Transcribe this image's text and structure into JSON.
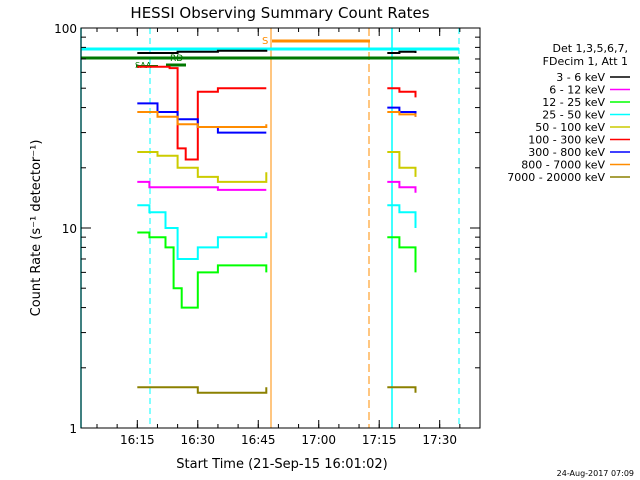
{
  "chart_data": {
    "type": "line",
    "title": "HESSI Observing Summary Count Rates",
    "xlabel": "Start Time (21-Sep-15 16:01:02)",
    "ylabel": "Count Rate (s⁻¹ detector⁻¹)",
    "y_scale": "log",
    "ylim": [
      1,
      100
    ],
    "xlim": [
      "16:01:02",
      "17:40:00"
    ],
    "x_ticks": [
      "16:15",
      "16:30",
      "16:45",
      "17:00",
      "17:15",
      "17:30"
    ],
    "y_ticks": [
      "1",
      "10",
      "100"
    ],
    "legend_header": [
      "Det 1,3,5,6,7,",
      "FDecim 1, Att 1"
    ],
    "legend_placement": "right",
    "flags": [
      "S",
      "RD",
      "SAA"
    ],
    "series": [
      {
        "name": "3 - 6 keV",
        "color": "#000000",
        "segments": [
          {
            "x": [
              "16:15",
              "16:25",
              "16:35",
              "16:47"
            ],
            "y": [
              75,
              76,
              77,
              76
            ]
          },
          {
            "x": [
              "17:17",
              "17:20",
              "17:24"
            ],
            "y": [
              75,
              76,
              75
            ]
          }
        ]
      },
      {
        "name": "6 - 12 keV",
        "color": "#ff00ff",
        "segments": [
          {
            "x": [
              "16:15",
              "16:18",
              "16:25",
              "16:35",
              "16:47"
            ],
            "y": [
              17,
              16,
              16,
              15.5,
              15.5
            ]
          },
          {
            "x": [
              "17:17",
              "17:20",
              "17:24"
            ],
            "y": [
              17,
              16,
              15
            ]
          }
        ]
      },
      {
        "name": "12 - 25 keV",
        "color": "#00ff00",
        "segments": [
          {
            "x": [
              "16:15",
              "16:18",
              "16:22",
              "16:24",
              "16:26",
              "16:30",
              "16:35",
              "16:47"
            ],
            "y": [
              9.5,
              9,
              8,
              5,
              4,
              6,
              6.5,
              6
            ]
          },
          {
            "x": [
              "17:17",
              "17:20",
              "17:24"
            ],
            "y": [
              9,
              8,
              6
            ]
          }
        ]
      },
      {
        "name": "25 - 50 keV",
        "color": "#00ffff",
        "segments": [
          {
            "x": [
              "16:15",
              "16:18",
              "16:22",
              "16:25",
              "16:30",
              "16:35",
              "16:47"
            ],
            "y": [
              13,
              12,
              10,
              7,
              8,
              9,
              9.5
            ]
          },
          {
            "x": [
              "17:17",
              "17:20",
              "17:24"
            ],
            "y": [
              13,
              12,
              10
            ]
          }
        ]
      },
      {
        "name": "50 - 100 keV",
        "color": "#cccc00",
        "segments": [
          {
            "x": [
              "16:15",
              "16:20",
              "16:25",
              "16:30",
              "16:35",
              "16:47"
            ],
            "y": [
              24,
              23,
              20,
              18,
              17,
              19
            ]
          },
          {
            "x": [
              "17:17",
              "17:20",
              "17:24"
            ],
            "y": [
              24,
              20,
              18
            ]
          }
        ]
      },
      {
        "name": "100 - 300 keV",
        "color": "#ff0000",
        "segments": [
          {
            "x": [
              "16:15",
              "16:23",
              "16:25",
              "16:27",
              "16:30",
              "16:35",
              "16:47"
            ],
            "y": [
              64,
              63,
              25,
              22,
              48,
              50,
              50
            ]
          },
          {
            "x": [
              "17:17",
              "17:20",
              "17:24"
            ],
            "y": [
              50,
              48,
              45
            ]
          }
        ]
      },
      {
        "name": "300 - 800 keV",
        "color": "#0000ff",
        "segments": [
          {
            "x": [
              "16:15",
              "16:20",
              "16:25",
              "16:30",
              "16:35",
              "16:47"
            ],
            "y": [
              42,
              38,
              35,
              32,
              30,
              30
            ]
          },
          {
            "x": [
              "17:17",
              "17:20",
              "17:24"
            ],
            "y": [
              40,
              38,
              36
            ]
          }
        ]
      },
      {
        "name": "800 - 7000 keV",
        "color": "#ff8c00",
        "segments": [
          {
            "x": [
              "16:15",
              "16:20",
              "16:25",
              "16:30",
              "16:35",
              "16:47"
            ],
            "y": [
              38,
              36,
              33,
              32,
              32,
              33
            ]
          },
          {
            "x": [
              "17:17",
              "17:20",
              "17:24"
            ],
            "y": [
              38,
              37,
              36
            ]
          }
        ]
      },
      {
        "name": "7000 - 20000 keV",
        "color": "#8b8000",
        "segments": [
          {
            "x": [
              "16:15",
              "16:30",
              "16:47"
            ],
            "y": [
              1.6,
              1.5,
              1.6
            ]
          },
          {
            "x": [
              "17:17",
              "17:24"
            ],
            "y": [
              1.6,
              1.5
            ]
          }
        ]
      }
    ]
  },
  "timestamp": "24-Aug-2017 07:09"
}
